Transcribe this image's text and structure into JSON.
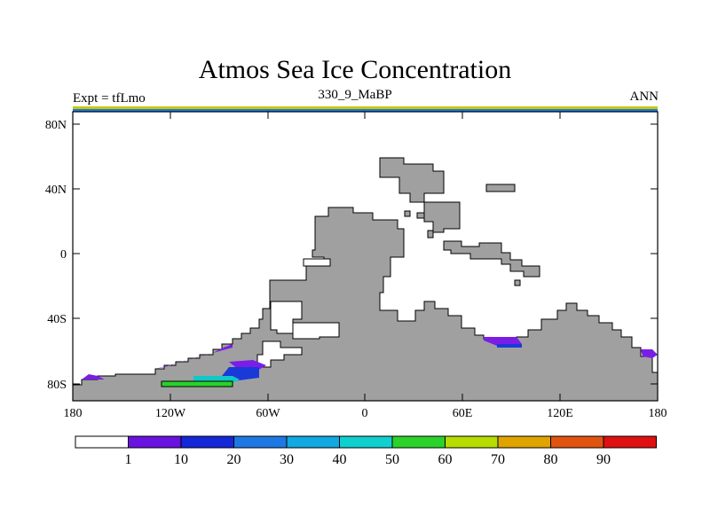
{
  "header": {
    "title": "Atmos Sea Ice Concentration",
    "expt": "Expt = tfLmo",
    "subtitle": "330_9_MaBP",
    "season": "ANN"
  },
  "axes": {
    "x_ticks": [
      "180",
      "120W",
      "60W",
      "0",
      "60E",
      "120E",
      "180"
    ],
    "y_ticks": [
      "80N",
      "40N",
      "0",
      "40S",
      "80S"
    ]
  },
  "colorbar": {
    "labels": [
      "1",
      "10",
      "20",
      "30",
      "40",
      "50",
      "60",
      "70",
      "80",
      "90"
    ],
    "colors": [
      "#ffffff",
      "#6a12e0",
      "#1428d8",
      "#1e78e4",
      "#12a8e2",
      "#10cfcf",
      "#2ad22a",
      "#b6dc00",
      "#e0a400",
      "#e05410",
      "#e01010"
    ]
  },
  "colors": {
    "land": "#a0a0a0",
    "ice_purple": "#7a1ee6",
    "ice_blue": "#1a3ad8",
    "ice_cyan": "#10c8c8",
    "ice_green": "#2ad22a",
    "top_band_yellow": "#c8c800",
    "top_band_blue": "#1e78e4"
  }
}
